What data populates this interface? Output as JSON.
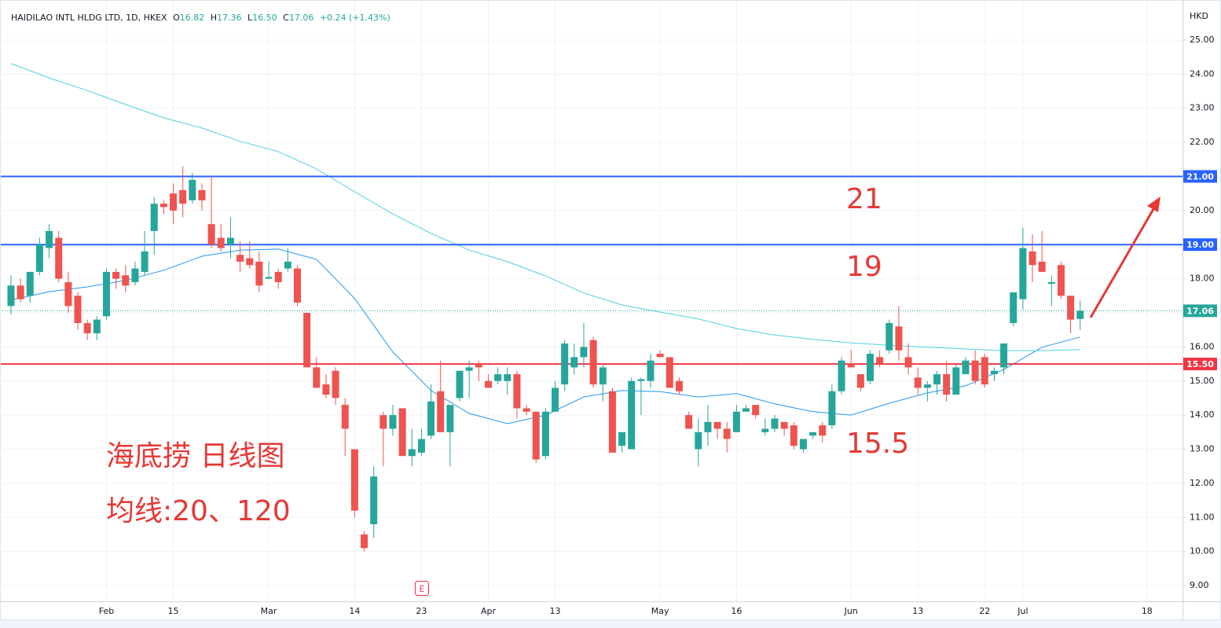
{
  "header": {
    "symbol": "HAIDILAO INTL HLDG LTD, 1D, HKEX",
    "fields": [
      {
        "key": "O",
        "value": "16.82"
      },
      {
        "key": "H",
        "value": "17.36"
      },
      {
        "key": "L",
        "value": "16.50"
      },
      {
        "key": "C",
        "value": "17.06"
      }
    ],
    "change": "+0.24 (+1.43%)"
  },
  "chart_data": {
    "type": "candlestick",
    "currency": "HKD",
    "up_color": "#26a69a",
    "down_color": "#ef5350",
    "categories": [
      null,
      null,
      null,
      null,
      null,
      null,
      null,
      null,
      null,
      null,
      "Feb",
      null,
      null,
      null,
      null,
      null,
      null,
      "15",
      null,
      null,
      null,
      null,
      null,
      null,
      null,
      null,
      null,
      "Mar",
      null,
      null,
      null,
      null,
      null,
      null,
      null,
      null,
      "14",
      null,
      null,
      null,
      null,
      null,
      null,
      "23",
      null,
      null,
      null,
      null,
      null,
      null,
      "Apr",
      null,
      null,
      null,
      null,
      null,
      null,
      "13",
      null,
      null,
      null,
      null,
      null,
      null,
      null,
      null,
      null,
      null,
      "May",
      null,
      null,
      null,
      null,
      null,
      null,
      null,
      "16",
      null,
      null,
      null,
      null,
      null,
      null,
      null,
      null,
      null,
      null,
      null,
      "Jun",
      null,
      null,
      null,
      null,
      null,
      null,
      "13",
      null,
      null,
      null,
      null,
      null,
      null,
      "22",
      null,
      null,
      null,
      "Jul",
      null,
      null,
      null,
      null,
      null,
      null,
      null,
      null,
      null,
      null,
      null,
      null,
      "18",
      null,
      null,
      null
    ],
    "open": [
      17.2,
      17.8,
      17.5,
      18.2,
      18.9,
      19.2,
      17.9,
      17.5,
      16.7,
      16.4,
      16.9,
      18.2,
      18.1,
      17.9,
      18.2,
      19.4,
      20.2,
      20.5,
      20.6,
      20.3,
      20.6,
      19.6,
      19.2,
      19.0,
      18.7,
      18.6,
      18.5,
      18.0,
      18.2,
      18.3,
      18.3,
      17.0,
      15.4,
      14.9,
      15.3,
      14.3,
      13.0,
      10.5,
      10.8,
      14.0,
      13.6,
      14.2,
      12.8,
      12.9,
      13.4,
      14.7,
      13.5,
      14.5,
      15.3,
      15.5,
      15.0,
      15.0,
      15.0,
      15.2,
      14.2,
      14.1,
      12.8,
      14.1,
      14.9,
      15.4,
      15.7,
      16.2,
      14.9,
      14.7,
      13.1,
      13.0,
      15.0,
      15.0,
      15.8,
      15.7,
      15.0,
      14.0,
      13.0,
      13.5,
      13.8,
      13.6,
      13.5,
      14.1,
      14.3,
      13.5,
      13.6,
      13.8,
      13.7,
      13.0,
      13.4,
      13.7,
      13.7,
      14.7,
      15.5,
      15.2,
      15.0,
      15.7,
      15.9,
      16.6,
      15.7,
      15.1,
      14.8,
      14.9,
      15.2,
      14.6,
      15.2,
      15.6,
      15.7,
      15.2,
      15.4,
      16.7,
      17.4,
      18.8,
      18.5,
      17.85,
      18.4,
      17.5,
      16.82,
      null,
      null,
      null,
      null,
      null,
      null,
      null,
      null,
      null,
      null
    ],
    "high": [
      18.1,
      18.0,
      18.2,
      19.2,
      19.6,
      19.4,
      18.2,
      17.6,
      16.8,
      16.9,
      18.3,
      18.3,
      18.4,
      18.5,
      19.4,
      20.4,
      20.3,
      20.8,
      21.3,
      21.1,
      20.8,
      21.0,
      19.6,
      19.8,
      19.1,
      19.1,
      18.8,
      18.5,
      18.3,
      18.9,
      18.4,
      17.0,
      15.7,
      15.2,
      15.4,
      14.5,
      13.0,
      10.6,
      12.5,
      14.1,
      14.3,
      14.2,
      13.6,
      13.6,
      14.9,
      15.6,
      14.3,
      15.3,
      15.6,
      15.6,
      15.2,
      15.4,
      15.4,
      15.3,
      14.3,
      14.1,
      14.2,
      15.0,
      16.2,
      16.1,
      16.7,
      16.3,
      15.5,
      14.8,
      13.5,
      15.1,
      15.1,
      15.8,
      15.9,
      15.7,
      15.1,
      14.1,
      13.9,
      14.3,
      13.8,
      13.8,
      14.3,
      14.3,
      14.3,
      13.9,
      14.0,
      13.8,
      13.8,
      13.3,
      13.5,
      13.8,
      14.9,
      15.7,
      15.9,
      15.2,
      15.9,
      15.9,
      16.8,
      17.2,
      16.1,
      15.4,
      15.0,
      15.3,
      15.6,
      15.5,
      15.7,
      15.9,
      15.8,
      15.4,
      16.1,
      17.6,
      19.5,
      19.3,
      19.4,
      18.1,
      18.5,
      17.5,
      17.36,
      null,
      null,
      null,
      null,
      null,
      null,
      null,
      null,
      null,
      null
    ],
    "low": [
      16.95,
      17.3,
      17.3,
      18.1,
      18.6,
      17.9,
      17.0,
      16.5,
      16.2,
      16.2,
      16.8,
      17.7,
      17.6,
      17.8,
      18.1,
      18.7,
      19.9,
      19.6,
      19.8,
      20.2,
      20.0,
      18.9,
      18.8,
      18.6,
      18.2,
      18.3,
      17.6,
      18.0,
      17.7,
      18.2,
      17.2,
      15.4,
      14.8,
      14.5,
      14.3,
      12.8,
      11.0,
      10.0,
      10.4,
      12.5,
      13.4,
      12.8,
      12.5,
      12.8,
      13.3,
      13.5,
      12.5,
      14.4,
      14.5,
      15.0,
      14.8,
      14.9,
      14.6,
      13.9,
      14.0,
      12.6,
      12.7,
      14.1,
      14.7,
      15.2,
      15.4,
      14.8,
      14.4,
      12.9,
      12.9,
      13.0,
      14.0,
      14.8,
      15.7,
      14.8,
      14.6,
      13.6,
      12.5,
      13.1,
      13.3,
      12.9,
      13.5,
      14.1,
      13.9,
      13.4,
      13.5,
      13.4,
      13.0,
      12.9,
      13.3,
      13.2,
      13.6,
      14.6,
      15.4,
      14.7,
      14.9,
      15.4,
      15.8,
      15.6,
      15.2,
      14.6,
      14.4,
      14.6,
      14.4,
      14.6,
      15.2,
      14.9,
      14.8,
      15.0,
      15.2,
      16.6,
      17.1,
      17.9,
      18.3,
      17.2,
      17.4,
      16.4,
      16.5,
      null,
      null,
      null,
      null,
      null,
      null,
      null,
      null,
      null,
      null
    ],
    "close": [
      17.8,
      17.4,
      18.2,
      19.0,
      19.4,
      18.0,
      17.2,
      16.7,
      16.4,
      16.8,
      18.2,
      18.0,
      17.8,
      18.3,
      18.8,
      20.2,
      20.1,
      20.0,
      20.2,
      20.9,
      20.3,
      19.0,
      18.9,
      19.2,
      18.5,
      18.4,
      17.8,
      18.05,
      17.9,
      18.5,
      17.3,
      15.4,
      14.8,
      14.6,
      14.5,
      13.6,
      11.2,
      10.1,
      12.2,
      13.6,
      14.0,
      12.8,
      13.0,
      13.3,
      14.4,
      13.5,
      14.3,
      15.3,
      15.4,
      15.4,
      14.8,
      15.2,
      15.2,
      14.2,
      14.1,
      12.7,
      14.1,
      14.8,
      16.1,
      15.7,
      16.0,
      14.9,
      15.4,
      12.9,
      13.5,
      15.0,
      15.05,
      15.6,
      15.7,
      14.8,
      14.7,
      13.6,
      13.5,
      13.8,
      13.6,
      13.3,
      14.1,
      14.2,
      14.0,
      13.6,
      13.9,
      13.6,
      13.1,
      13.3,
      13.5,
      13.4,
      14.7,
      15.6,
      15.4,
      14.8,
      15.8,
      15.5,
      16.7,
      15.9,
      15.4,
      14.8,
      14.9,
      15.2,
      14.6,
      15.4,
      15.6,
      15.0,
      14.9,
      15.3,
      16.1,
      17.6,
      18.9,
      18.4,
      18.2,
      17.9,
      17.5,
      16.8,
      17.06,
      null,
      null,
      null,
      null,
      null,
      null,
      null,
      null,
      null,
      null
    ],
    "moving_averages": [
      {
        "color": "#2196f3",
        "x": [
          0,
          4,
          8,
          12,
          16,
          20,
          24,
          28,
          32,
          36,
          40,
          44,
          48,
          52,
          56,
          60,
          64,
          68,
          72,
          76,
          80,
          84,
          88,
          92,
          96,
          100,
          104,
          108,
          112
        ],
        "values": [
          17.37,
          17.62,
          17.76,
          17.95,
          18.25,
          18.66,
          18.84,
          18.87,
          18.57,
          17.42,
          15.85,
          14.72,
          14.05,
          13.75,
          14.0,
          14.53,
          14.72,
          14.69,
          14.53,
          14.63,
          14.33,
          14.1,
          14.0,
          14.35,
          14.65,
          14.86,
          15.34,
          15.99,
          16.29
        ]
      },
      {
        "color": "#4dd0e1",
        "x": [
          0,
          4,
          8,
          12,
          16,
          20,
          24,
          28,
          32,
          36,
          40,
          44,
          48,
          52,
          56,
          60,
          64,
          68,
          72,
          76,
          80,
          84,
          88,
          92,
          96,
          100,
          104,
          108,
          112
        ],
        "values": [
          24.31,
          23.89,
          23.52,
          23.11,
          22.72,
          22.42,
          22.03,
          21.73,
          21.22,
          20.55,
          19.9,
          19.33,
          18.84,
          18.5,
          18.08,
          17.58,
          17.23,
          17.02,
          16.82,
          16.54,
          16.35,
          16.22,
          16.12,
          16.05,
          15.99,
          15.94,
          15.89,
          15.89,
          15.92
        ]
      }
    ],
    "price_lines": [
      {
        "value": 21,
        "label": "21.00",
        "color": "#2962ff"
      },
      {
        "value": 19,
        "label": "19.00",
        "color": "#2962ff"
      },
      {
        "value": 15.5,
        "label": "15.50",
        "color": "#f23645"
      }
    ],
    "last_price": {
      "value": 17.06,
      "label": "17.06",
      "color": "#26a69a"
    },
    "ylim": [
      8.54,
      25.99
    ],
    "yticks": [
      {
        "value": 9,
        "label": "9.00"
      },
      {
        "value": 10,
        "label": "10.00"
      },
      {
        "value": 11,
        "label": "11.00"
      },
      {
        "value": 12,
        "label": "12.00"
      },
      {
        "value": 13,
        "label": "13.00"
      },
      {
        "value": 14,
        "label": "14.00"
      },
      {
        "value": 15,
        "label": "15.00"
      },
      {
        "value": 16,
        "label": "16.00"
      },
      {
        "value": 17,
        "label": "17.00"
      },
      {
        "value": 18,
        "label": "18.00"
      },
      {
        "value": 19,
        "label": "19.00"
      },
      {
        "value": 20,
        "label": "20.00"
      },
      {
        "value": 21,
        "label": "21.00"
      },
      {
        "value": 22,
        "label": "22.00"
      },
      {
        "value": 23,
        "label": "23.00"
      },
      {
        "value": 24,
        "label": "24.00"
      },
      {
        "value": 25,
        "label": "25.00"
      }
    ],
    "grid": true,
    "earnings_marker": "E",
    "annotations": [
      {
        "text": "21"
      },
      {
        "text": "19"
      },
      {
        "text": "15.5"
      },
      {
        "text": "海底捞 日线图"
      },
      {
        "text": "均线:20、120"
      }
    ]
  }
}
